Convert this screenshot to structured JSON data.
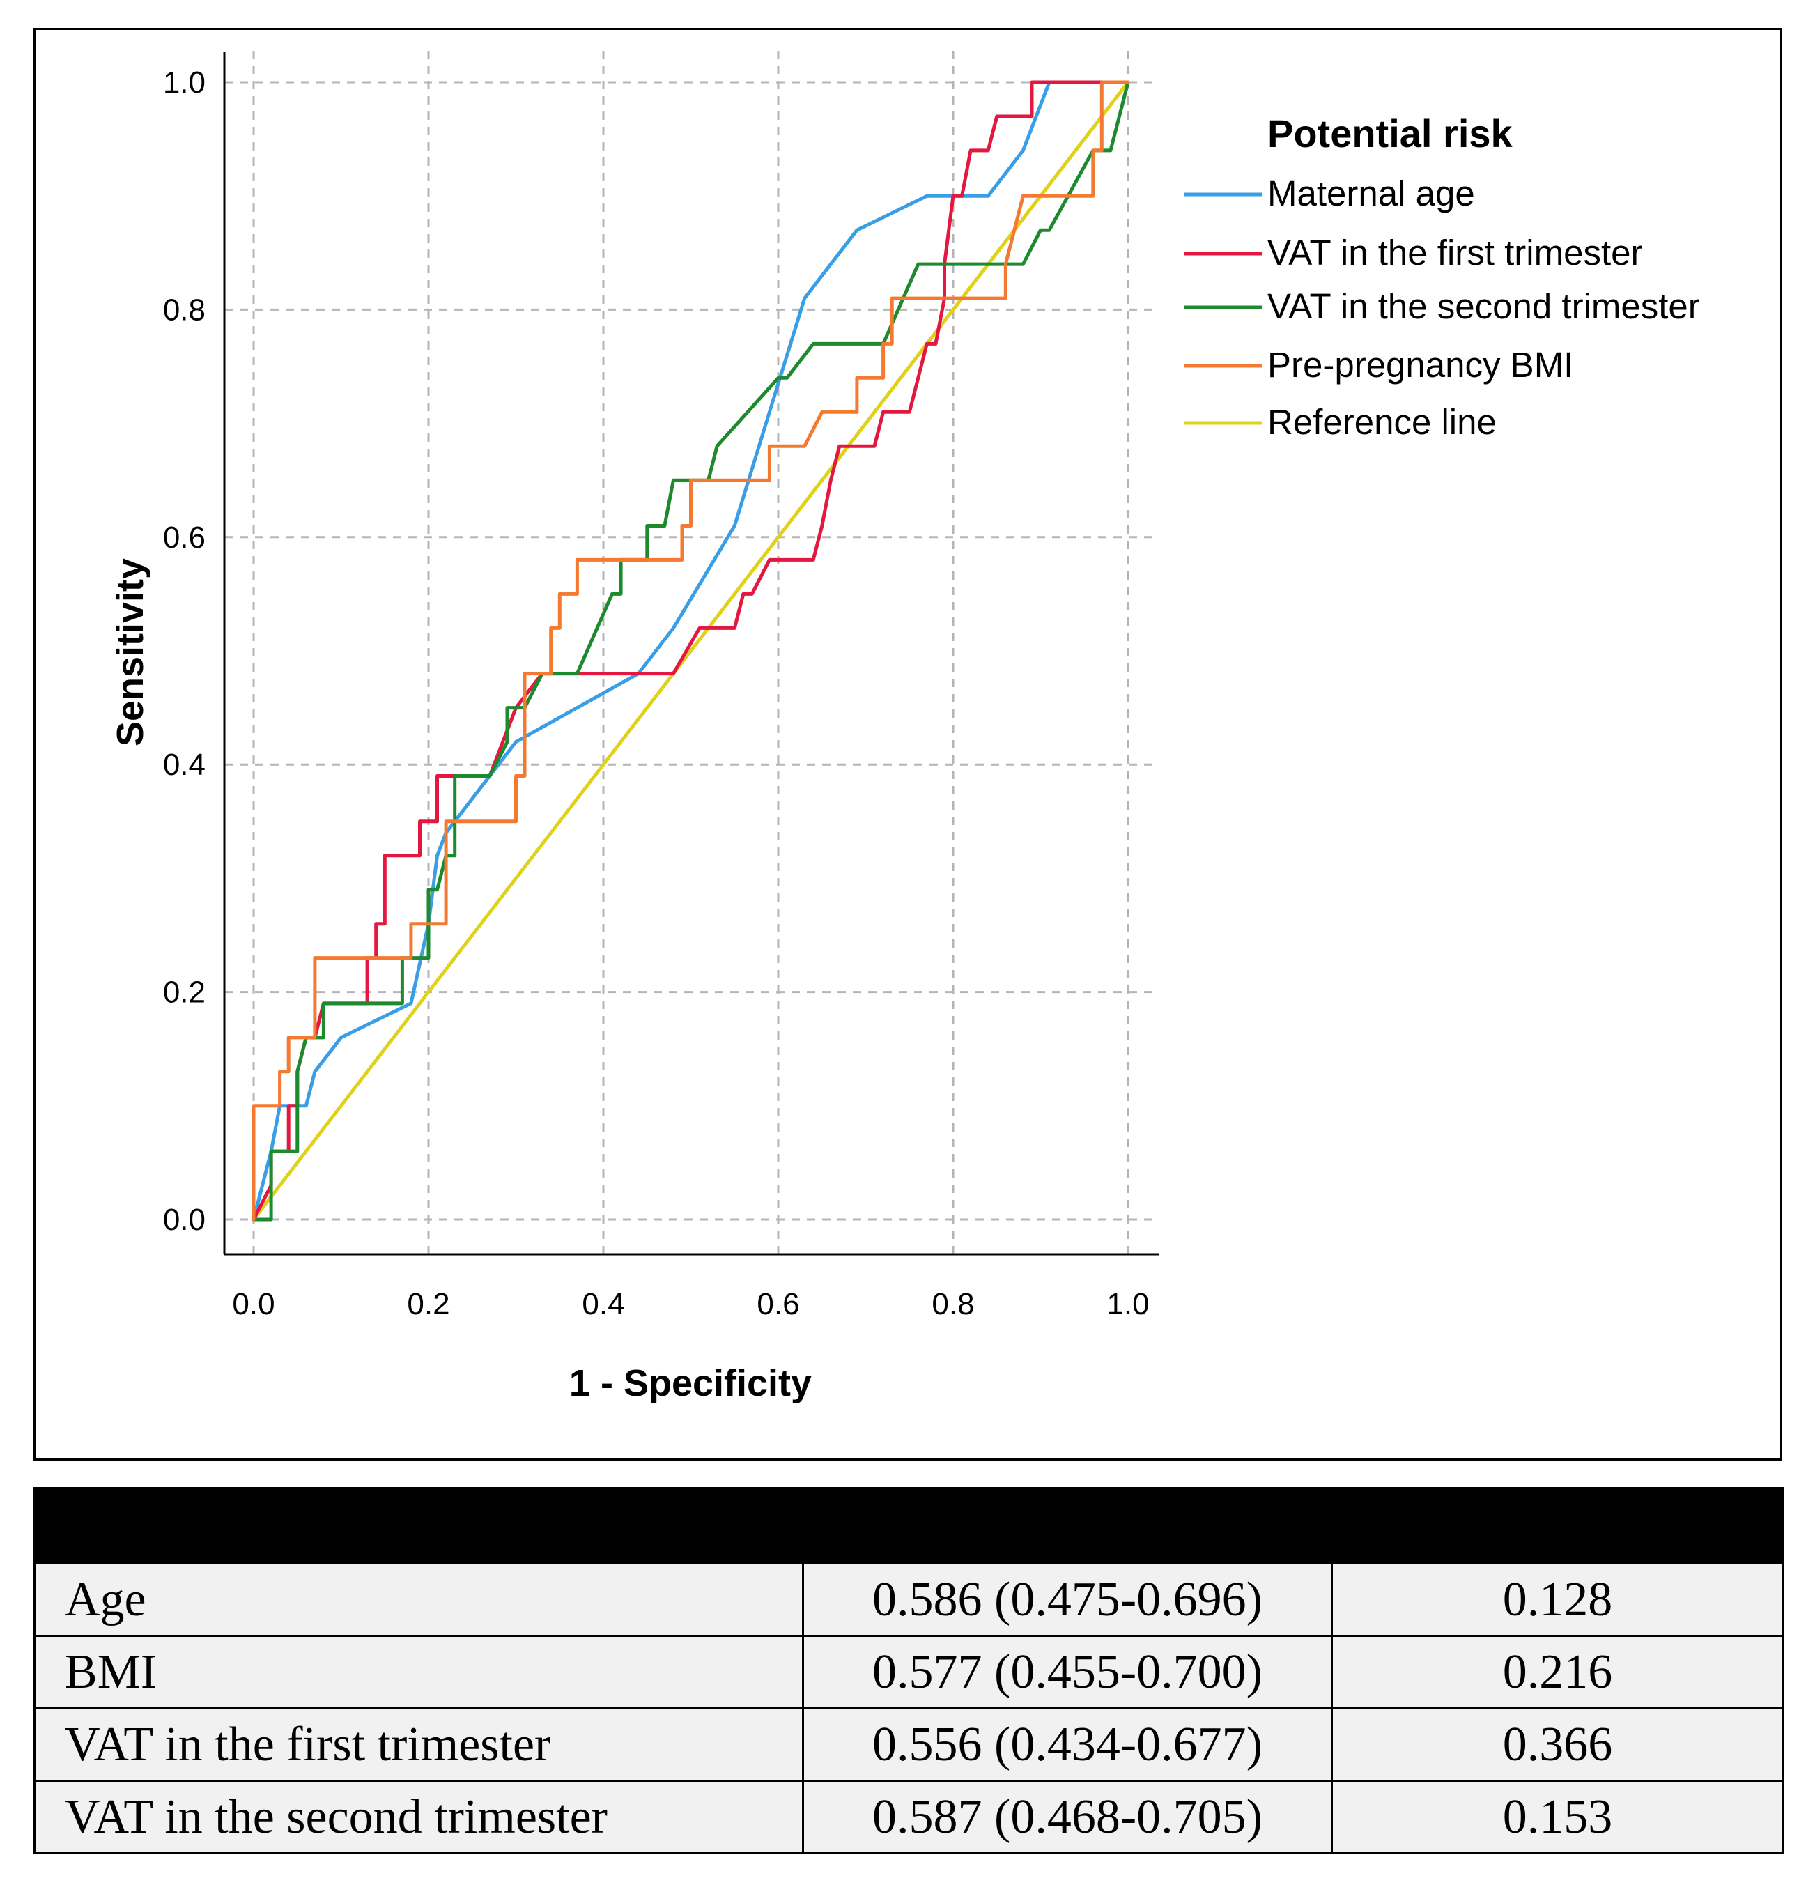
{
  "chart_data": {
    "type": "line",
    "xlabel": "1 - Specificity",
    "ylabel": "Sensitivity",
    "xlim": [
      0,
      1
    ],
    "ylim": [
      0,
      1
    ],
    "x_ticks": [
      "0.0",
      "0.2",
      "0.4",
      "0.6",
      "0.8",
      "1.0"
    ],
    "y_ticks": [
      "0.0",
      "0.2",
      "0.4",
      "0.6",
      "0.8",
      "1.0"
    ],
    "grid": true,
    "legend_title": "Potential risk",
    "legend_position": "right",
    "series": [
      {
        "name": "Maternal age",
        "color": "#3a9ee6",
        "x": [
          0,
          0.01,
          0.02,
          0.03,
          0.06,
          0.07,
          0.1,
          0.18,
          0.2,
          0.21,
          0.22,
          0.3,
          0.44,
          0.48,
          0.55,
          0.59,
          0.63,
          0.69,
          0.77,
          0.84,
          0.88,
          0.91,
          0.97,
          1.0
        ],
        "y": [
          0,
          0.03,
          0.06,
          0.1,
          0.1,
          0.13,
          0.16,
          0.19,
          0.26,
          0.32,
          0.34,
          0.42,
          0.48,
          0.52,
          0.61,
          0.71,
          0.81,
          0.87,
          0.9,
          0.9,
          0.94,
          1.0,
          1.0,
          1.0
        ]
      },
      {
        "name": "VAT in the first trimester",
        "color": "#e3173f",
        "x": [
          0,
          0.02,
          0.02,
          0.03,
          0.04,
          0.04,
          0.05,
          0.05,
          0.06,
          0.07,
          0.08,
          0.08,
          0.13,
          0.13,
          0.14,
          0.14,
          0.15,
          0.15,
          0.19,
          0.19,
          0.21,
          0.21,
          0.27,
          0.3,
          0.33,
          0.48,
          0.51,
          0.55,
          0.56,
          0.57,
          0.59,
          0.6,
          0.62,
          0.64,
          0.65,
          0.65,
          0.66,
          0.67,
          0.67,
          0.71,
          0.72,
          0.72,
          0.75,
          0.76,
          0.77,
          0.78,
          0.79,
          0.79,
          0.8,
          0.81,
          0.82,
          0.82,
          0.84,
          0.85,
          0.85,
          0.89,
          0.89,
          0.91,
          0.98,
          1.0
        ],
        "y": [
          0,
          0.03,
          0.06,
          0.06,
          0.06,
          0.1,
          0.1,
          0.13,
          0.16,
          0.16,
          0.19,
          0.19,
          0.19,
          0.23,
          0.23,
          0.26,
          0.26,
          0.32,
          0.32,
          0.35,
          0.35,
          0.39,
          0.39,
          0.45,
          0.48,
          0.48,
          0.52,
          0.52,
          0.55,
          0.55,
          0.58,
          0.58,
          0.58,
          0.58,
          0.61,
          0.61,
          0.65,
          0.68,
          0.68,
          0.68,
          0.71,
          0.71,
          0.71,
          0.74,
          0.77,
          0.77,
          0.81,
          0.84,
          0.9,
          0.9,
          0.94,
          0.94,
          0.94,
          0.97,
          0.97,
          0.97,
          1.0,
          1.0,
          1.0,
          1.0
        ]
      },
      {
        "name": "VAT in the second trimester",
        "color": "#1e8a2e",
        "x": [
          0,
          0.02,
          0.02,
          0.03,
          0.05,
          0.05,
          0.06,
          0.08,
          0.08,
          0.11,
          0.17,
          0.17,
          0.2,
          0.2,
          0.21,
          0.22,
          0.23,
          0.23,
          0.27,
          0.29,
          0.29,
          0.31,
          0.33,
          0.37,
          0.41,
          0.41,
          0.42,
          0.42,
          0.45,
          0.45,
          0.47,
          0.48,
          0.52,
          0.53,
          0.6,
          0.61,
          0.64,
          0.72,
          0.76,
          0.8,
          0.86,
          0.88,
          0.9,
          0.91,
          0.96,
          0.96,
          0.98,
          0.99,
          1.0
        ],
        "y": [
          0,
          0,
          0.06,
          0.06,
          0.06,
          0.13,
          0.16,
          0.16,
          0.19,
          0.19,
          0.19,
          0.23,
          0.23,
          0.29,
          0.29,
          0.32,
          0.32,
          0.39,
          0.39,
          0.42,
          0.45,
          0.45,
          0.48,
          0.48,
          0.55,
          0.55,
          0.55,
          0.58,
          0.58,
          0.61,
          0.61,
          0.65,
          0.65,
          0.68,
          0.74,
          0.74,
          0.77,
          0.77,
          0.84,
          0.84,
          0.84,
          0.84,
          0.87,
          0.87,
          0.94,
          0.94,
          0.94,
          0.97,
          1.0
        ]
      },
      {
        "name": "Pre-pregnancy BMI",
        "color": "#f47a32",
        "x": [
          0,
          0,
          0.03,
          0.03,
          0.04,
          0.04,
          0.06,
          0.07,
          0.07,
          0.07,
          0.1,
          0.14,
          0.16,
          0.18,
          0.18,
          0.22,
          0.22,
          0.25,
          0.3,
          0.3,
          0.31,
          0.31,
          0.34,
          0.34,
          0.35,
          0.35,
          0.37,
          0.37,
          0.39,
          0.39,
          0.49,
          0.49,
          0.5,
          0.5,
          0.59,
          0.59,
          0.63,
          0.63,
          0.65,
          0.65,
          0.69,
          0.69,
          0.72,
          0.72,
          0.73,
          0.73,
          0.77,
          0.84,
          0.86,
          0.86,
          0.87,
          0.88,
          0.96,
          0.96,
          0.97,
          0.97,
          1.0
        ],
        "y": [
          0,
          0.1,
          0.1,
          0.13,
          0.13,
          0.16,
          0.16,
          0.16,
          0.19,
          0.23,
          0.23,
          0.23,
          0.23,
          0.23,
          0.26,
          0.26,
          0.35,
          0.35,
          0.35,
          0.39,
          0.39,
          0.48,
          0.48,
          0.52,
          0.52,
          0.55,
          0.55,
          0.58,
          0.58,
          0.58,
          0.58,
          0.61,
          0.61,
          0.65,
          0.65,
          0.68,
          0.68,
          0.68,
          0.71,
          0.71,
          0.71,
          0.74,
          0.74,
          0.77,
          0.77,
          0.81,
          0.81,
          0.81,
          0.81,
          0.84,
          0.87,
          0.9,
          0.9,
          0.94,
          0.94,
          1.0,
          1.0
        ]
      },
      {
        "name": "Reference line",
        "color": "#e0d21a",
        "x": [
          0,
          1
        ],
        "y": [
          0,
          1
        ]
      }
    ]
  },
  "table": {
    "header": [
      "",
      "",
      ""
    ],
    "rows": [
      {
        "variable": "Age",
        "auc": "0.586 (0.475-0.696)",
        "p": "0.128"
      },
      {
        "variable": "BMI",
        "auc": "0.577 (0.455-0.700)",
        "p": "0.216"
      },
      {
        "variable": "VAT in the first trimester",
        "auc": "0.556 (0.434-0.677)",
        "p": "0.366"
      },
      {
        "variable": "VAT in the second trimester",
        "auc": "0.587 (0.468-0.705)",
        "p": "0.153"
      }
    ]
  }
}
